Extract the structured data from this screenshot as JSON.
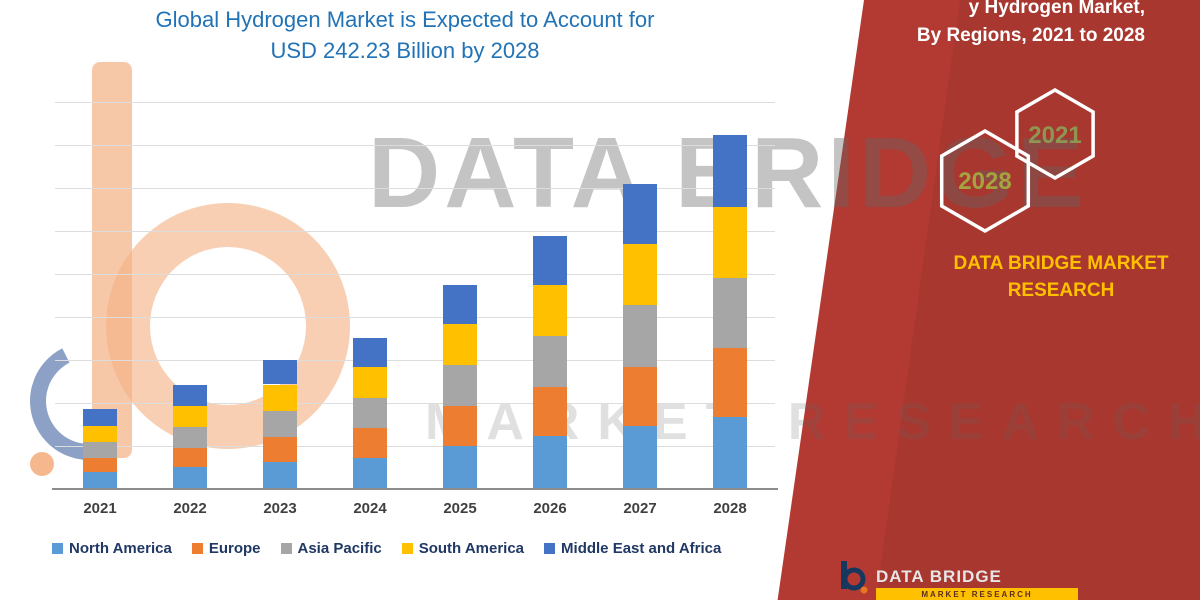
{
  "title": {
    "line1": "Global Hydrogen Market is Expected to Account for",
    "line2": "USD 242.23 Billion by 2028"
  },
  "watermark": {
    "line1": "DATA BRIDGE",
    "line2": "MARKET RESEARCH"
  },
  "side_panel": {
    "heading_line1": "y Hydrogen Market,",
    "heading_line2": "By Regions, 2021 to 2028",
    "hexagons": [
      {
        "label": "2028"
      },
      {
        "label": "2021"
      }
    ],
    "brand_line1": "DATA BRIDGE MARKET",
    "brand_line2": "RESEARCH",
    "footer_logo_text": "DATA BRIDGE",
    "footer_strip_text": "MARKET RESEARCH",
    "panel_color": "#B23A32",
    "brand_color": "#FFC000"
  },
  "chart_data": {
    "type": "bar",
    "stacked": true,
    "title": "Global Hydrogen Market is Expected to Account for USD 242.23 Billion by 2028",
    "value_unit": "USD Billion",
    "categories": [
      "2021",
      "2022",
      "2023",
      "2024",
      "2025",
      "2026",
      "2027",
      "2028"
    ],
    "series": [
      {
        "name": "North America",
        "color": "#5B9BD5",
        "values": [
          12,
          16,
          19,
          22,
          30,
          37,
          44,
          50
        ]
      },
      {
        "name": "Europe",
        "color": "#ED7D31",
        "values": [
          10,
          13,
          17,
          20,
          27,
          33,
          40,
          47
        ]
      },
      {
        "name": "Asia Pacific",
        "color": "#A6A6A6",
        "values": [
          11,
          14,
          18,
          21,
          28,
          35,
          42,
          48
        ]
      },
      {
        "name": "South America",
        "color": "#FFC000",
        "values": [
          11,
          14,
          18,
          21,
          28,
          35,
          42,
          48
        ]
      },
      {
        "name": "Middle East and Africa",
        "color": "#4472C4",
        "values": [
          11,
          15,
          17,
          20,
          27,
          33,
          41,
          49.23
        ]
      }
    ],
    "totals": [
      55,
      72,
      89,
      104,
      140,
      173,
      209,
      242.23
    ],
    "ylim": [
      0,
      250
    ],
    "gridlines": true,
    "legend_position": "bottom",
    "xlabel": "",
    "ylabel": ""
  }
}
